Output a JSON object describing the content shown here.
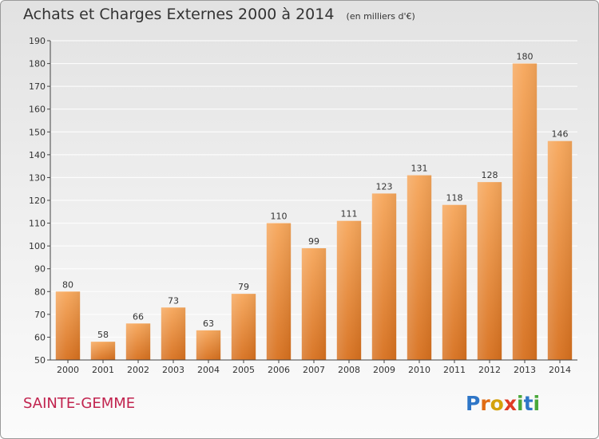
{
  "header": {
    "title": "Achats et Charges Externes 2000 à 2014",
    "unit": "(en milliers d'€)"
  },
  "footer": {
    "city": "SAINTE-GEMME",
    "logo_text": "Proxiti"
  },
  "colors": {
    "bar_top": "#f6a65a",
    "bar_bottom": "#d7701e",
    "city": "#c1234e"
  },
  "chart_data": {
    "type": "bar",
    "title": "Achats et Charges Externes 2000 à 2014",
    "subtitle": "(en milliers d'€)",
    "categories": [
      "2000",
      "2001",
      "2002",
      "2003",
      "2004",
      "2005",
      "2006",
      "2007",
      "2008",
      "2009",
      "2010",
      "2011",
      "2012",
      "2013",
      "2014"
    ],
    "values": [
      80,
      58,
      66,
      73,
      63,
      79,
      110,
      99,
      111,
      123,
      131,
      118,
      128,
      180,
      146
    ],
    "ylim": [
      50,
      190
    ],
    "yticks": [
      50,
      60,
      70,
      80,
      90,
      100,
      110,
      120,
      130,
      140,
      150,
      160,
      170,
      180,
      190
    ],
    "grid": true,
    "data_labels": true
  }
}
